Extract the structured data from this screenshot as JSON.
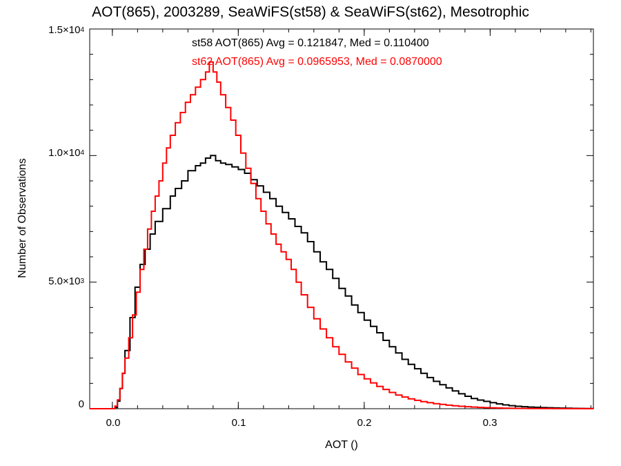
{
  "chart_data": {
    "type": "line",
    "title": "AOT(865), 2003289, SeaWiFS(st58) & SeaWiFS(st62), Mesotrophic",
    "xlabel": "AOT ()",
    "ylabel": "Number of Observations",
    "xlim": [
      -0.018,
      0.382
    ],
    "ylim": [
      0,
      15000
    ],
    "x_ticks": [
      {
        "value": 0.0,
        "label": "0.0"
      },
      {
        "value": 0.1,
        "label": "0.1"
      },
      {
        "value": 0.2,
        "label": "0.2"
      },
      {
        "value": 0.3,
        "label": "0.3"
      }
    ],
    "y_ticks": [
      {
        "value": 0,
        "mantissa": "0",
        "exp": ""
      },
      {
        "value": 5000,
        "mantissa": "5.0×10",
        "exp": "3"
      },
      {
        "value": 10000,
        "mantissa": "1.0×10",
        "exp": "4"
      },
      {
        "value": 15000,
        "mantissa": "1.5×10",
        "exp": "4"
      }
    ],
    "annotations": [
      {
        "text": "st58 AOT(865) Avg = 0.121847, Med = 0.110400",
        "color": "#000000"
      },
      {
        "text": "st62 AOT(865) Avg = 0.0965953, Med = 0.0870000",
        "color": "#ff0000"
      }
    ],
    "series": [
      {
        "color": "#000000",
        "x": [
          -0.018,
          0.0,
          0.002,
          0.004,
          0.006,
          0.008,
          0.01,
          0.014,
          0.018,
          0.022,
          0.026,
          0.03,
          0.034,
          0.04,
          0.046,
          0.05,
          0.055,
          0.06,
          0.066,
          0.07,
          0.074,
          0.078,
          0.082,
          0.086,
          0.09,
          0.095,
          0.1,
          0.105,
          0.11,
          0.115,
          0.12,
          0.125,
          0.13,
          0.135,
          0.14,
          0.145,
          0.15,
          0.155,
          0.16,
          0.165,
          0.17,
          0.175,
          0.18,
          0.185,
          0.19,
          0.195,
          0.2,
          0.205,
          0.21,
          0.215,
          0.22,
          0.225,
          0.23,
          0.235,
          0.24,
          0.245,
          0.25,
          0.255,
          0.26,
          0.265,
          0.27,
          0.275,
          0.28,
          0.285,
          0.29,
          0.295,
          0.3,
          0.305,
          0.31,
          0.315,
          0.32,
          0.325,
          0.33,
          0.335,
          0.34,
          0.345,
          0.35,
          0.355,
          0.36,
          0.365,
          0.37,
          0.375,
          0.382
        ],
        "values": [
          0,
          0,
          50,
          300,
          800,
          1400,
          2300,
          3600,
          4800,
          5700,
          6300,
          6900,
          7400,
          7900,
          8400,
          8700,
          9000,
          9400,
          9600,
          9700,
          9900,
          10000,
          9800,
          9700,
          9650,
          9550,
          9450,
          9300,
          9050,
          8800,
          8550,
          8300,
          8000,
          7750,
          7500,
          7200,
          6950,
          6600,
          6200,
          5800,
          5500,
          5150,
          4750,
          4450,
          4100,
          3800,
          3500,
          3250,
          3000,
          2700,
          2450,
          2200,
          1950,
          1750,
          1580,
          1400,
          1230,
          1080,
          950,
          820,
          700,
          590,
          490,
          400,
          340,
          290,
          240,
          190,
          150,
          120,
          95,
          80,
          65,
          55,
          45,
          38,
          30,
          24,
          18,
          14,
          10,
          8,
          5
        ]
      },
      {
        "color": "#ff0000",
        "x": [
          -0.018,
          0.0,
          0.002,
          0.004,
          0.006,
          0.008,
          0.01,
          0.013,
          0.016,
          0.019,
          0.022,
          0.025,
          0.028,
          0.031,
          0.034,
          0.037,
          0.04,
          0.043,
          0.046,
          0.05,
          0.054,
          0.058,
          0.062,
          0.066,
          0.07,
          0.074,
          0.077,
          0.08,
          0.083,
          0.086,
          0.09,
          0.094,
          0.098,
          0.102,
          0.106,
          0.11,
          0.114,
          0.118,
          0.122,
          0.126,
          0.13,
          0.134,
          0.138,
          0.142,
          0.146,
          0.15,
          0.155,
          0.16,
          0.165,
          0.17,
          0.175,
          0.18,
          0.185,
          0.19,
          0.195,
          0.2,
          0.205,
          0.21,
          0.215,
          0.22,
          0.225,
          0.23,
          0.235,
          0.24,
          0.245,
          0.25,
          0.255,
          0.26,
          0.265,
          0.27,
          0.275,
          0.28,
          0.285,
          0.29,
          0.295,
          0.3,
          0.305,
          0.31,
          0.315,
          0.32,
          0.33,
          0.34,
          0.35,
          0.36,
          0.382
        ],
        "values": [
          0,
          0,
          100,
          350,
          800,
          1400,
          2000,
          2800,
          3700,
          4600,
          5500,
          6300,
          7100,
          7800,
          8400,
          9000,
          9700,
          10300,
          10800,
          11300,
          11700,
          12100,
          12400,
          12700,
          13000,
          13300,
          13700,
          13300,
          12900,
          12400,
          11900,
          11400,
          10800,
          10100,
          9500,
          8900,
          8300,
          7800,
          7300,
          6900,
          6500,
          6200,
          5900,
          5500,
          5000,
          4500,
          4000,
          3550,
          3150,
          2800,
          2450,
          2150,
          1850,
          1600,
          1350,
          1180,
          1020,
          880,
          760,
          640,
          540,
          460,
          390,
          330,
          280,
          240,
          200,
          170,
          140,
          115,
          95,
          80,
          65,
          52,
          42,
          34,
          27,
          21,
          16,
          12,
          8,
          6,
          4,
          2,
          0
        ]
      }
    ]
  }
}
